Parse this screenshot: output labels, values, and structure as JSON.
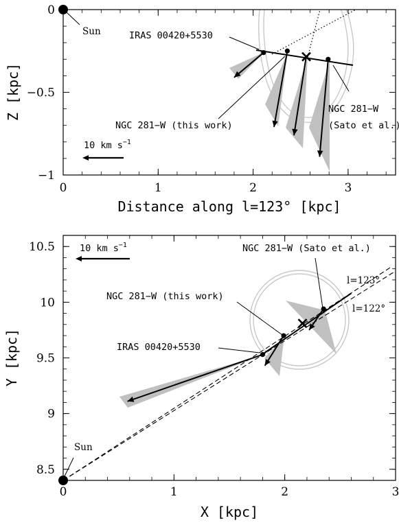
{
  "chart_data": [
    {
      "type": "scatter",
      "title": "",
      "xlabel": "Distance along l=123° [kpc]",
      "ylabel": "Z [kpc]",
      "xlim": [
        0,
        3.5
      ],
      "ylim": [
        -1,
        0
      ],
      "xticks": [
        0,
        1,
        2,
        3
      ],
      "xticklabels": [
        "0",
        "1",
        "2",
        "3"
      ],
      "yticks": [
        0,
        -0.5,
        -1
      ],
      "yticklabels": [
        "0",
        "−0.5",
        "−1"
      ],
      "grid": false,
      "sun": {
        "label": "Sun",
        "x": 0,
        "y": 0
      },
      "sources": [
        {
          "label": "IRAS 00420+5530",
          "x": 2.11,
          "y": -0.26,
          "vx": -0.31,
          "vy": -0.15
        },
        {
          "label": "NGC 281−W (this work)",
          "x": 2.36,
          "y": -0.25,
          "vx": -0.14,
          "vy": -0.46
        },
        {
          "label": "NGC 281−W\n(Sato et al.)",
          "x": 2.79,
          "y": -0.3,
          "vx": -0.09,
          "vy": -0.59
        }
      ],
      "extra_arrows": [
        {
          "x": 2.56,
          "y": -0.28,
          "vx": -0.13,
          "vy": -0.48
        }
      ],
      "center_marker": {
        "symbol": "×",
        "x": 2.56,
        "y": -0.285
      },
      "scale_arrow": {
        "label": "10 km s^-1",
        "length_kpc": 0.52
      }
    },
    {
      "type": "scatter",
      "title": "",
      "xlabel": "X [kpc]",
      "ylabel": "Y [kpc]",
      "xlim": [
        0,
        3
      ],
      "ylim": [
        8.4,
        10.6
      ],
      "xticks": [
        0,
        1,
        2,
        3
      ],
      "xticklabels": [
        "0",
        "1",
        "2",
        "3"
      ],
      "yticks": [
        8.5,
        9,
        9.5,
        10,
        10.5
      ],
      "yticklabels": [
        "8.5",
        "9",
        "9.5",
        "10",
        "10.5"
      ],
      "grid": false,
      "sun": {
        "label": "Sun",
        "x": 0,
        "y": 8.4
      },
      "sources": [
        {
          "label": "IRAS 00420+5530",
          "x": 1.8,
          "y": 9.53,
          "vx": -1.22,
          "vy": -0.42
        },
        {
          "label": "NGC 281−W (this work)",
          "x": 1.99,
          "y": 9.7,
          "vx": -0.17,
          "vy": -0.27
        },
        {
          "label": "NGC 281−W (Sato et al.)",
          "x": 2.35,
          "y": 9.94,
          "vx": -0.13,
          "vy": -0.19
        }
      ],
      "lines": [
        {
          "label": "l=123°",
          "x": [
            0,
            2.95
          ],
          "y": [
            8.4,
            10.31
          ]
        },
        {
          "label": "l=122°",
          "x": [
            0,
            3.0
          ],
          "y": [
            8.4,
            10.28
          ]
        }
      ],
      "center_marker": {
        "symbol": "×",
        "x": 2.16,
        "y": 9.81
      },
      "scale_arrow": {
        "label": "10 km s^-1",
        "length_kpc": 0.5
      }
    }
  ]
}
